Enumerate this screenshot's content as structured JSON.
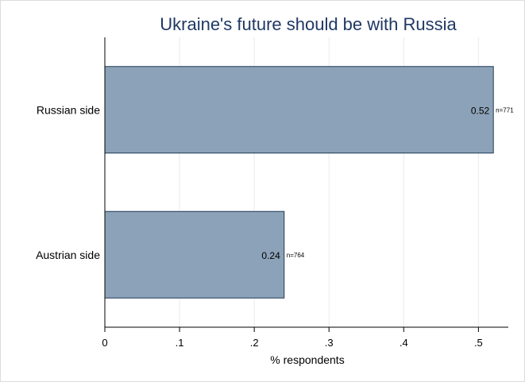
{
  "chart_data": {
    "type": "bar",
    "orientation": "horizontal",
    "title": "Ukraine's future should be with Russia",
    "xlabel": "% respondents",
    "ylabel": "",
    "categories": [
      "Russian side",
      "Austrian side"
    ],
    "values": [
      0.52,
      0.24
    ],
    "value_labels": [
      "0.52",
      "0.24"
    ],
    "n_labels": [
      "n=771",
      "n=764"
    ],
    "xlim": [
      0,
      0.54
    ],
    "xticks": [
      0,
      0.1,
      0.2,
      0.3,
      0.4,
      0.5
    ],
    "xtick_labels": [
      "0",
      ".1",
      ".2",
      ".3",
      ".4",
      ".5"
    ],
    "grid": "vertical",
    "legend": "none",
    "colors": {
      "bar_fill": "#8ca2b8",
      "bar_stroke": "#1f3a55",
      "title": "#1f3864",
      "grid": "#e6ecef"
    }
  }
}
